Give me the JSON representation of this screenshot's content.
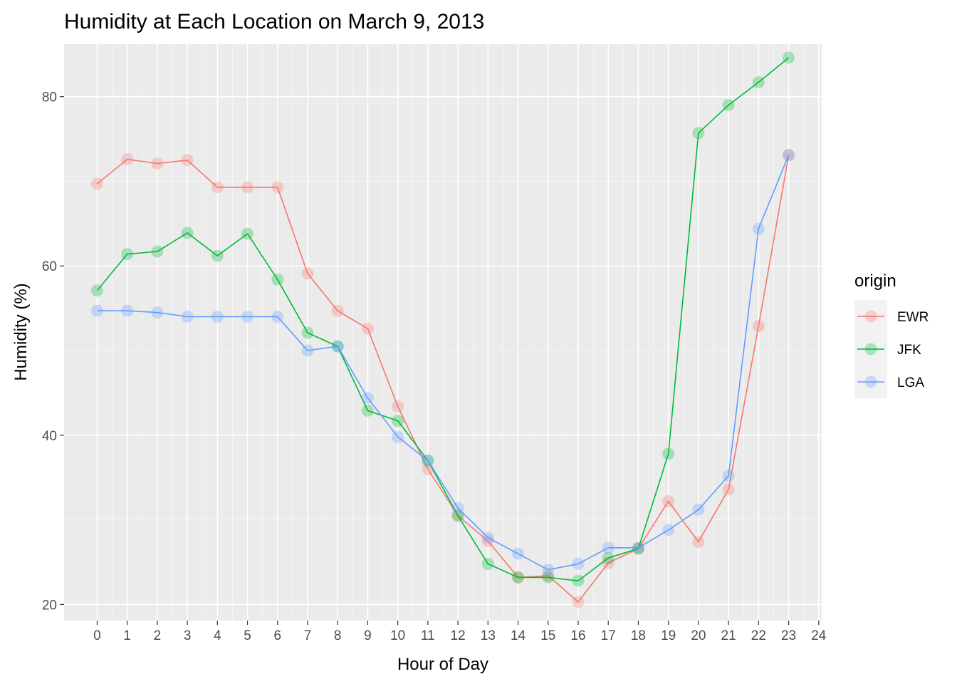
{
  "chart_data": {
    "type": "line",
    "title": "Humidity at Each Location on March 9, 2013",
    "xlabel": "Hour of Day",
    "ylabel": "Humidity (%)",
    "xlim": [
      -1.1,
      24.1
    ],
    "ylim": [
      18.1,
      86.2
    ],
    "x_ticks": [
      0,
      1,
      2,
      3,
      4,
      5,
      6,
      7,
      8,
      9,
      10,
      11,
      12,
      13,
      14,
      15,
      16,
      17,
      18,
      19,
      20,
      21,
      22,
      23,
      24
    ],
    "y_ticks": [
      20,
      40,
      60,
      80
    ],
    "grid": true,
    "legend": {
      "title": "origin",
      "position": "right"
    },
    "x": [
      0,
      1,
      2,
      3,
      4,
      5,
      6,
      7,
      8,
      9,
      10,
      11,
      12,
      13,
      14,
      15,
      16,
      17,
      18,
      19,
      20,
      21,
      22,
      23
    ],
    "series": [
      {
        "name": "EWR",
        "color": "#F8766D",
        "values": [
          69.7,
          72.6,
          72.1,
          72.5,
          69.3,
          69.3,
          69.3,
          59.1,
          54.7,
          52.6,
          43.4,
          36.0,
          30.5,
          27.5,
          23.2,
          23.4,
          20.3,
          24.9,
          26.6,
          32.2,
          27.4,
          33.6,
          52.9,
          73.1
        ]
      },
      {
        "name": "JFK",
        "color": "#00BA38",
        "values": [
          57.1,
          61.4,
          61.7,
          63.9,
          61.2,
          63.8,
          58.4,
          52.1,
          50.5,
          42.9,
          41.7,
          37.0,
          30.5,
          24.8,
          23.2,
          23.2,
          22.8,
          25.5,
          26.6,
          37.8,
          75.7,
          79.0,
          81.7,
          84.6
        ]
      },
      {
        "name": "LGA",
        "color": "#619CFF",
        "values": [
          54.7,
          54.7,
          54.5,
          54.0,
          54.0,
          54.0,
          54.0,
          50.0,
          50.5,
          44.4,
          39.8,
          37.0,
          31.4,
          27.9,
          26.0,
          24.1,
          24.8,
          26.7,
          26.7,
          28.8,
          31.2,
          35.2,
          64.4,
          73.1
        ]
      }
    ]
  }
}
